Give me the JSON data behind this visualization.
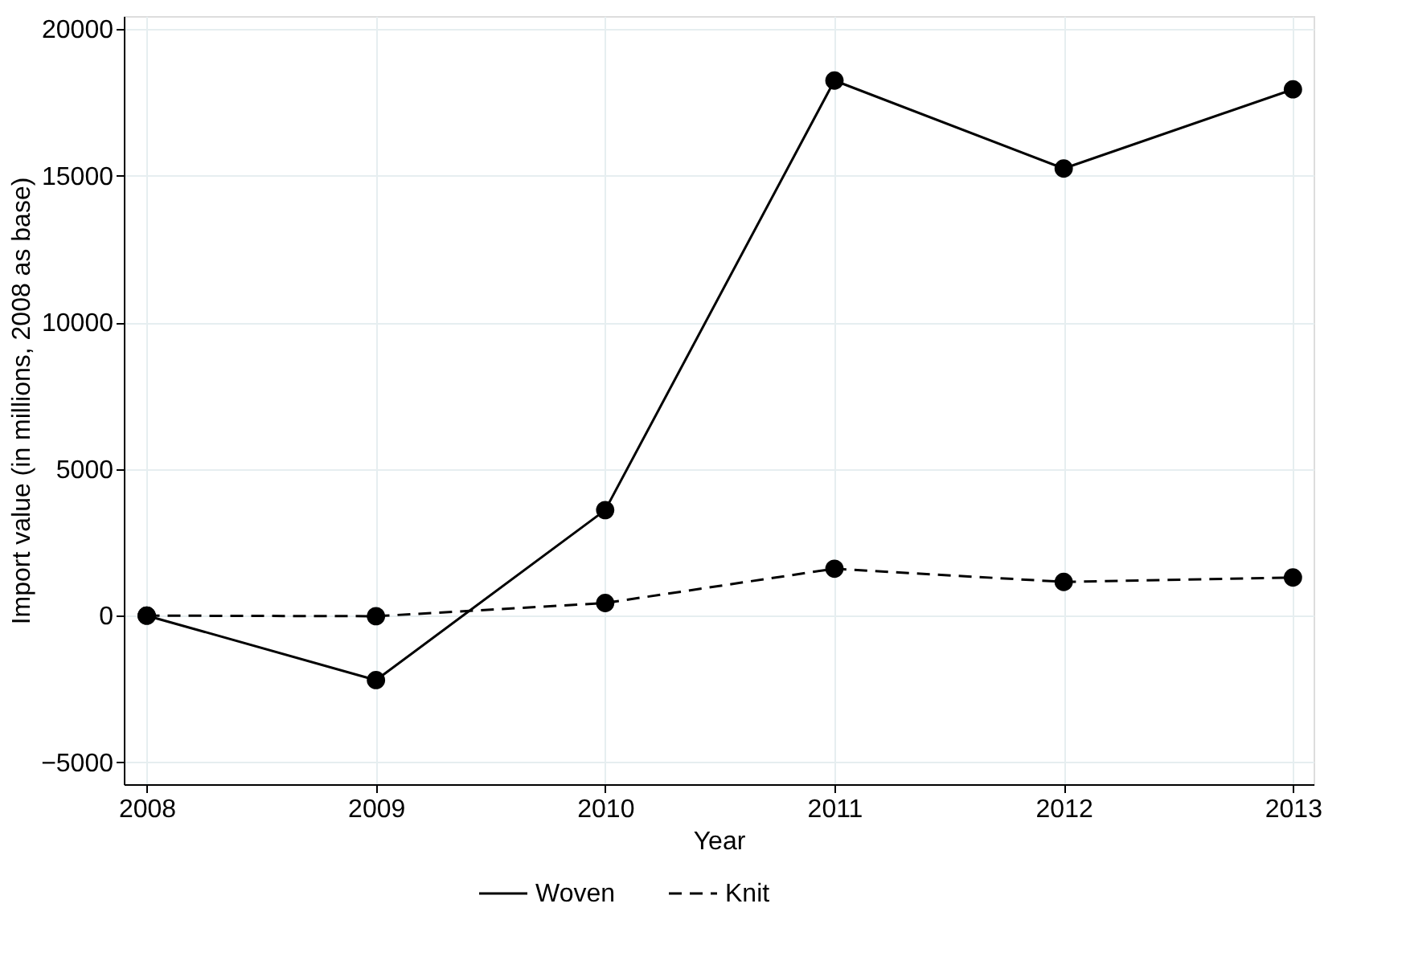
{
  "chart_data": {
    "type": "line",
    "xlabel": "Year",
    "ylabel": "Import value (in millions, 2008 as base)",
    "x": [
      2008,
      2009,
      2010,
      2011,
      2012,
      2013
    ],
    "series": [
      {
        "name": "Woven",
        "color": "#000000",
        "line_style": "solid",
        "values": [
          0,
          -2200,
          3600,
          18250,
          15250,
          17950
        ]
      },
      {
        "name": "Knit",
        "color": "#000000",
        "line_style": "dashed",
        "values": [
          0,
          -20,
          430,
          1600,
          1150,
          1300
        ]
      }
    ],
    "xlim": [
      2007.9,
      2013.09
    ],
    "xticks": [
      2008,
      2009,
      2010,
      2011,
      2012,
      2013
    ],
    "ylim": [
      -5750,
      20450
    ],
    "yticks": [
      -5000,
      0,
      5000,
      10000,
      15000,
      20000
    ],
    "grid": true,
    "legend": "bottom",
    "marker": "circle"
  }
}
